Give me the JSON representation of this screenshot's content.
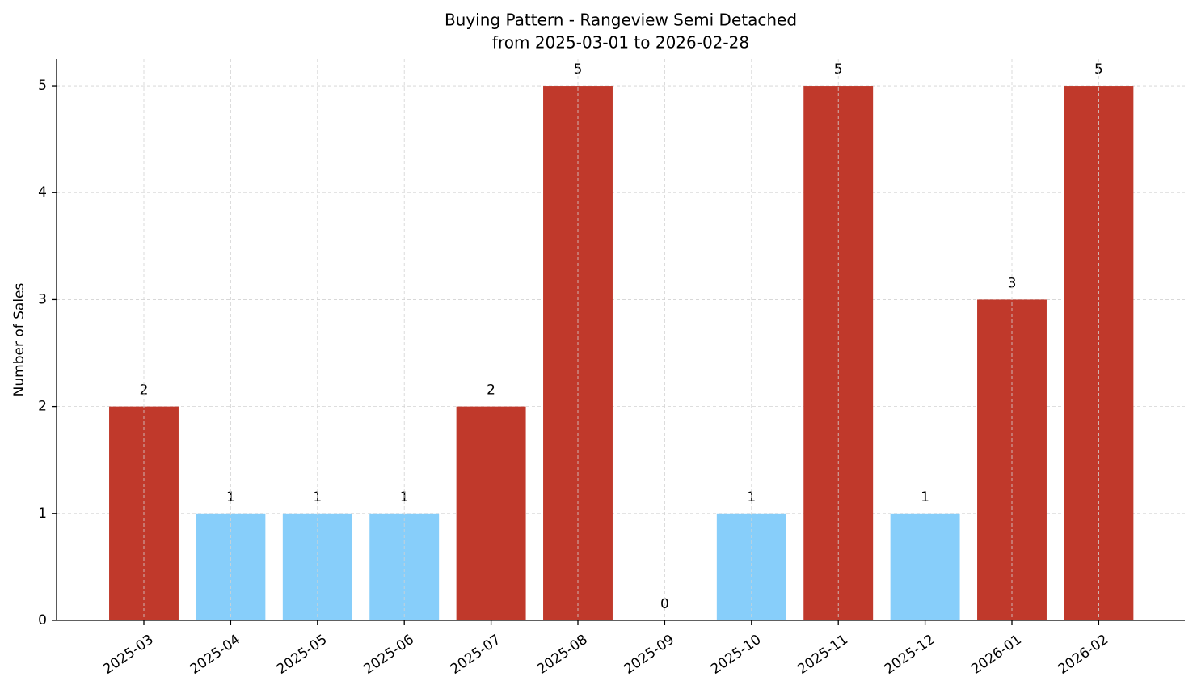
{
  "chart_data": {
    "type": "bar",
    "title": "Buying Pattern - Rangeview Semi Detached",
    "subtitle": "from 2025-03-01 to 2026-02-28",
    "y_label": "Number of Sales",
    "categories": [
      "2025-03",
      "2025-04",
      "2025-05",
      "2025-06",
      "2025-07",
      "2025-08",
      "2025-09",
      "2025-10",
      "2025-11",
      "2025-12",
      "2026-01",
      "2026-02"
    ],
    "values": [
      2,
      1,
      1,
      1,
      2,
      5,
      0,
      1,
      5,
      1,
      3,
      5
    ],
    "colors": [
      "#c0392b",
      "#87cefa",
      "#87cefa",
      "#87cefa",
      "#c0392b",
      "#c0392b",
      "#87cefa",
      "#87cefa",
      "#c0392b",
      "#87cefa",
      "#c0392b",
      "#c0392b"
    ],
    "ylim": [
      0,
      5.25
    ],
    "yticks": [
      0,
      1,
      2,
      3,
      4,
      5
    ],
    "grid": true
  }
}
